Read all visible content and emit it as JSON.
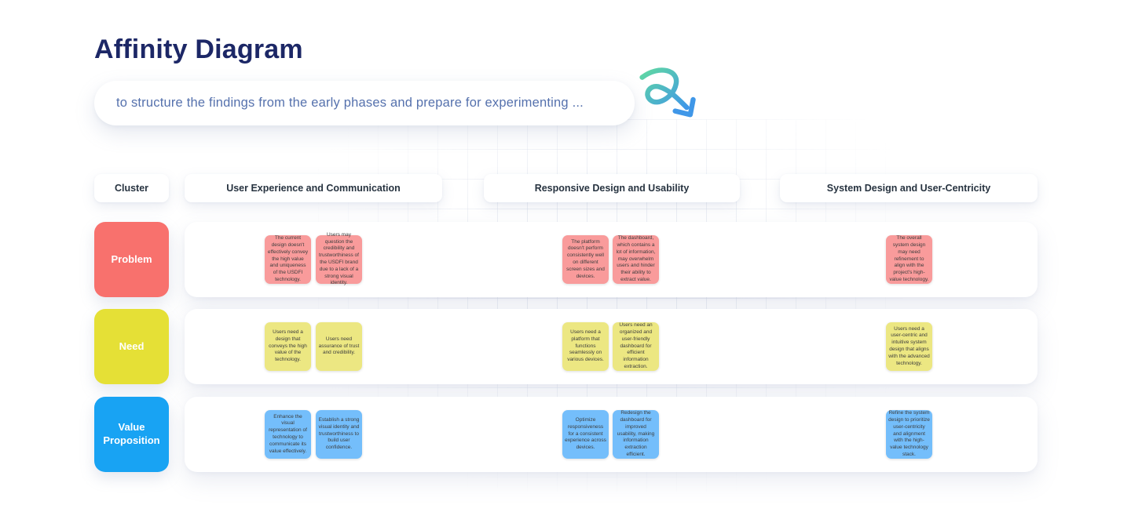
{
  "page": {
    "title": "Affinity Diagram",
    "subtitle": "to structure the findings from the early phases and prepare for experimenting ..."
  },
  "icons": {
    "doodle_arrow": "curly-arrow-pointing-down-right",
    "arrow_gradient_start": "#5fd8a2",
    "arrow_gradient_end": "#3f97e8"
  },
  "board": {
    "cluster_header": "Cluster",
    "columns": [
      "User Experience and Communication",
      "Responsive Design and Usability",
      "System Design and User-Centricity"
    ],
    "rows": [
      {
        "label": "Problem",
        "label_color": "#f8716d",
        "note_color": "#f99b9b",
        "notes": [
          "The current design doesn't effectively convey the high value and uniqueness of the USDFI technology.",
          "Users may question the credibility and trustworthiness of the USDFI brand due to a lack of a strong visual identity.",
          "The platform doesn't perform consistently well on different screen sizes and devices.",
          "The dashboard, which contains a lot of information, may overwhelm users and hinder their ability to extract value.",
          "The overall system design may need refinement to align with the project's high-value technology."
        ]
      },
      {
        "label": "Need",
        "label_color": "#e5e036",
        "note_color": "#ece782",
        "notes": [
          "Users need a design that conveys the high value of the technology.",
          "Users need assurance of trust and credibility.",
          "Users need a platform that functions seamlessly on various devices.",
          "Users need an organized and user-friendly dashboard for efficient information extraction.",
          "Users need a user-centric and intuitive system design that aligns with the advanced technology."
        ]
      },
      {
        "label": "Value Proposition",
        "label_color": "#18a3f3",
        "note_color": "#74befb",
        "notes": [
          "Enhance the visual representation of technology to communicate its value effectively.",
          "Establish a strong visual identity and trustworthiness to build user confidence.",
          "Optimize responsiveness for a consistent experience across devices.",
          "Redesign the dashboard for improved usability, making information extraction efficient.",
          "Refine the system design to prioritize user-centricity and alignment with the high-value technology stack."
        ]
      }
    ]
  }
}
